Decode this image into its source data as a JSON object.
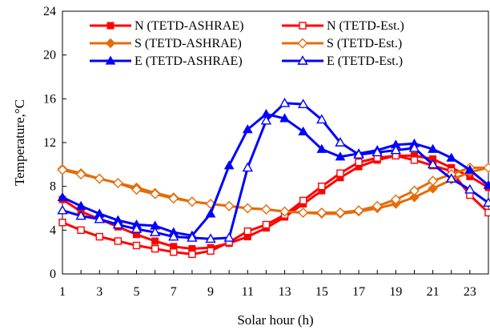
{
  "chart_data": {
    "type": "line",
    "xlabel": "Solar hour (h)",
    "ylabel": "Temperature,°C",
    "xlim": [
      1,
      24
    ],
    "ylim": [
      0,
      24
    ],
    "x_ticks": [
      1,
      3,
      5,
      7,
      9,
      11,
      13,
      15,
      17,
      19,
      21,
      23
    ],
    "y_ticks": [
      0,
      4,
      8,
      12,
      16,
      20,
      24
    ],
    "grid": false,
    "legend_position": "top",
    "x": [
      1,
      2,
      3,
      4,
      5,
      6,
      7,
      8,
      9,
      10,
      11,
      12,
      13,
      14,
      15,
      16,
      17,
      18,
      19,
      20,
      21,
      22,
      23,
      24
    ],
    "series": [
      {
        "name": "N (TETD-ASHRAE)",
        "color": "#ff0000",
        "marker": "square-filled",
        "values": [
          6.8,
          5.7,
          5.0,
          4.3,
          3.6,
          3.0,
          2.5,
          2.3,
          2.4,
          2.8,
          3.4,
          4.2,
          5.2,
          6.4,
          7.6,
          8.8,
          9.8,
          10.4,
          10.8,
          10.8,
          10.5,
          9.7,
          8.9,
          7.9
        ]
      },
      {
        "name": "N (TETD-Est.)",
        "color": "#ff0000",
        "marker": "square-open",
        "values": [
          4.7,
          4.0,
          3.4,
          3.0,
          2.6,
          2.3,
          2.0,
          1.8,
          2.1,
          2.9,
          3.9,
          4.5,
          5.4,
          6.7,
          8.0,
          9.2,
          10.2,
          10.6,
          10.8,
          10.4,
          9.9,
          9.4,
          7.2,
          5.6
        ]
      },
      {
        "name": "S (TETD-ASHRAE)",
        "color": "#e46c0a",
        "marker": "diamond-filled",
        "values": [
          9.6,
          9.2,
          8.7,
          8.3,
          7.9,
          7.4,
          7.0,
          6.6,
          6.4,
          6.2,
          6.0,
          5.9,
          5.7,
          5.6,
          5.5,
          5.5,
          5.7,
          6.0,
          6.4,
          7.0,
          7.8,
          8.6,
          9.3,
          9.7
        ]
      },
      {
        "name": "S (TETD-Est.)",
        "color": "#e46c0a",
        "marker": "diamond-open",
        "values": [
          9.5,
          9.1,
          8.7,
          8.3,
          7.7,
          7.3,
          6.9,
          6.6,
          6.4,
          6.2,
          6.0,
          5.9,
          5.7,
          5.6,
          5.6,
          5.6,
          5.8,
          6.2,
          6.8,
          7.6,
          8.5,
          9.1,
          9.7,
          9.7
        ]
      },
      {
        "name": "E (TETD-ASHRAE)",
        "color": "#0000ff",
        "marker": "triangle-filled",
        "values": [
          7.0,
          6.2,
          5.5,
          4.9,
          4.5,
          4.4,
          3.8,
          3.5,
          5.5,
          9.9,
          13.2,
          14.6,
          14.2,
          13.0,
          11.4,
          10.7,
          11.0,
          11.3,
          11.8,
          11.9,
          11.4,
          10.6,
          9.5,
          8.1
        ]
      },
      {
        "name": "E (TETD-Est.)",
        "color": "#0000ff",
        "marker": "triangle-open",
        "values": [
          5.8,
          5.3,
          5.0,
          4.5,
          4.1,
          3.8,
          3.4,
          3.3,
          3.2,
          3.3,
          9.7,
          14.0,
          15.6,
          15.5,
          14.1,
          12.0,
          10.9,
          11.1,
          11.3,
          11.5,
          10.0,
          8.7,
          7.7,
          6.5
        ]
      }
    ]
  }
}
